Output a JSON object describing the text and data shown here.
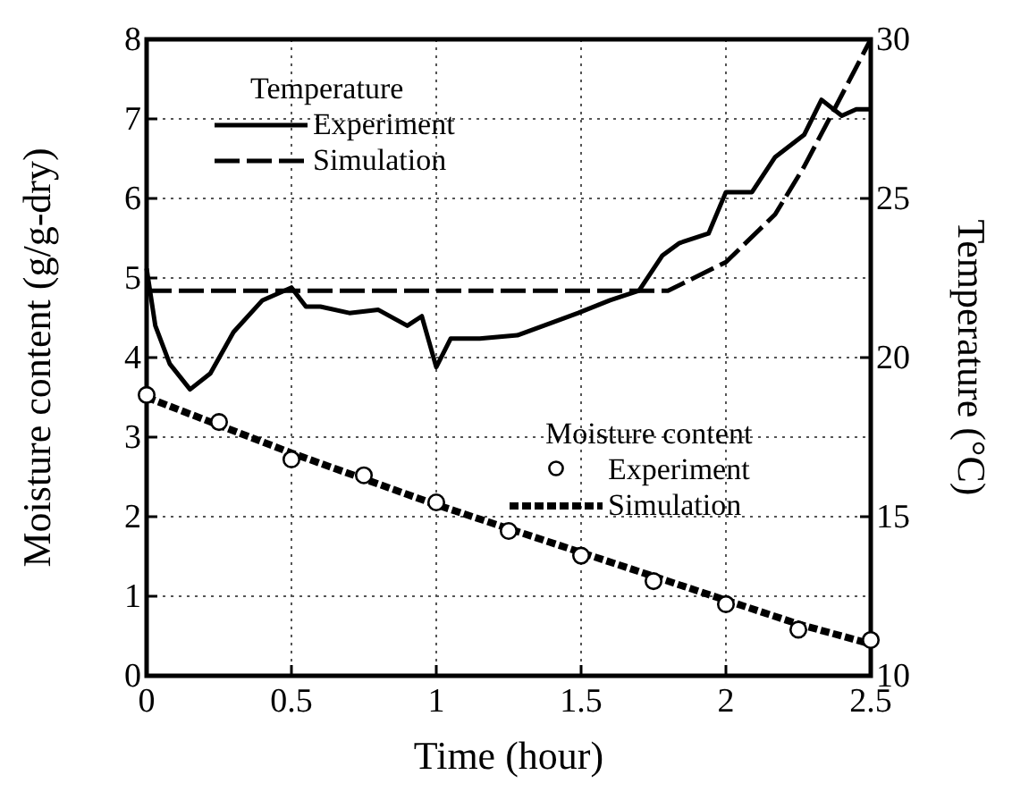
{
  "chart_data": {
    "type": "line",
    "xlabel": "Time (hour)",
    "ylabel": "Moisture content (g/g-dry)",
    "y2label": "Temperature (°C)",
    "xlim": [
      0,
      2.5
    ],
    "xticks": [
      0,
      0.5,
      1,
      1.5,
      2,
      2.5
    ],
    "ylim": [
      0,
      8
    ],
    "yticks": [
      0,
      1,
      2,
      3,
      4,
      5,
      6,
      7,
      8
    ],
    "y2lim": [
      10,
      30
    ],
    "y2ticks": [
      10,
      15,
      20,
      25,
      30
    ],
    "grid": true,
    "legend": "top left",
    "annotations": [
      "Temperature",
      "Moisture content"
    ],
    "series": [
      {
        "name": "Experiment",
        "axis": "y2",
        "color": "#000000",
        "line_style": "solid",
        "marker": "none",
        "x": [
          0,
          0.03,
          0.08,
          0.15,
          0.22,
          0.3,
          0.4,
          0.5,
          0.55,
          0.6,
          0.7,
          0.8,
          0.9,
          0.95,
          1.0,
          1.05,
          1.15,
          1.28,
          1.4,
          1.49,
          1.6,
          1.7,
          1.78,
          1.84,
          1.94,
          2.0,
          2.09,
          2.17,
          2.27,
          2.33,
          2.4,
          2.45,
          2.5
        ],
        "values": [
          22.8,
          21.0,
          19.8,
          19.0,
          19.5,
          20.8,
          21.8,
          22.2,
          21.6,
          21.6,
          21.4,
          21.5,
          21.0,
          21.3,
          19.7,
          20.6,
          20.6,
          20.7,
          21.1,
          21.4,
          21.8,
          22.1,
          23.2,
          23.6,
          23.9,
          25.2,
          25.2,
          26.3,
          27.0,
          28.1,
          27.6,
          27.8,
          27.8
        ]
      },
      {
        "name": "Simulation",
        "axis": "y2",
        "color": "#000000",
        "line_style": "dashed",
        "marker": "none",
        "x": [
          0,
          0.5,
          1.0,
          1.5,
          1.8,
          2.0,
          2.17,
          2.27,
          2.38,
          2.5
        ],
        "values": [
          22.1,
          22.1,
          22.1,
          22.1,
          22.1,
          23.0,
          24.5,
          26.0,
          27.9,
          30
        ]
      },
      {
        "name": "Experiment",
        "axis": "y",
        "color": "#000000",
        "type": "scatter",
        "marker": "circle",
        "x": [
          0,
          0.25,
          0.5,
          0.75,
          1.0,
          1.25,
          1.5,
          1.75,
          2.0,
          2.25,
          2.5
        ],
        "values": [
          3.53,
          3.19,
          2.72,
          2.52,
          2.18,
          1.82,
          1.51,
          1.19,
          0.9,
          0.58,
          0.45
        ]
      },
      {
        "name": "Simulation",
        "axis": "y",
        "color": "#000000",
        "line_style": "dotted",
        "marker": "none",
        "x": [
          0,
          0.5,
          1.0,
          1.5,
          2.0,
          2.25,
          2.5
        ],
        "values": [
          3.5,
          2.8,
          2.15,
          1.55,
          0.95,
          0.65,
          0.4
        ]
      }
    ]
  }
}
